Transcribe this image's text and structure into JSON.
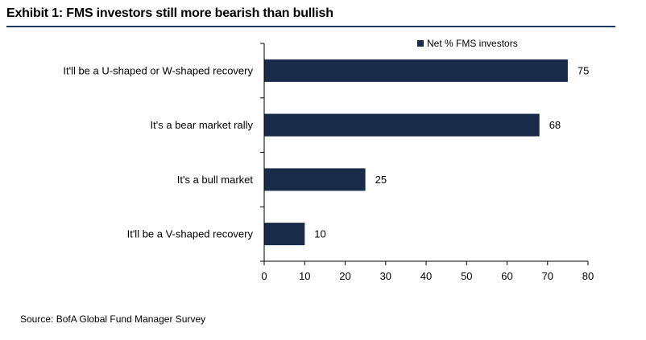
{
  "header": {
    "title": "Exhibit 1: FMS investors still more bearish than bullish"
  },
  "footer": {
    "source": "Source:  BofA Global Fund Manager Survey"
  },
  "colors": {
    "bar": "#1a2b4a",
    "rule": "#1f3864"
  },
  "chart_data": {
    "type": "bar",
    "orientation": "horizontal",
    "categories": [
      "It'll be a U-shaped or W-shaped recovery",
      "It's a bear market rally",
      "It's a bull market",
      "It'll be a V-shaped recovery"
    ],
    "series": [
      {
        "name": "Net % FMS investors",
        "values": [
          75,
          68,
          25,
          10
        ]
      }
    ],
    "data_labels": [
      "75",
      "68",
      "25",
      "10"
    ],
    "xlim": [
      0,
      80
    ],
    "xticks": [
      0,
      10,
      20,
      30,
      40,
      50,
      60,
      70,
      80
    ],
    "xtick_labels": [
      "0",
      "10",
      "20",
      "30",
      "40",
      "50",
      "60",
      "70",
      "80"
    ],
    "legend": {
      "label": "Net % FMS investors",
      "position": "top-right"
    },
    "grid": false
  }
}
